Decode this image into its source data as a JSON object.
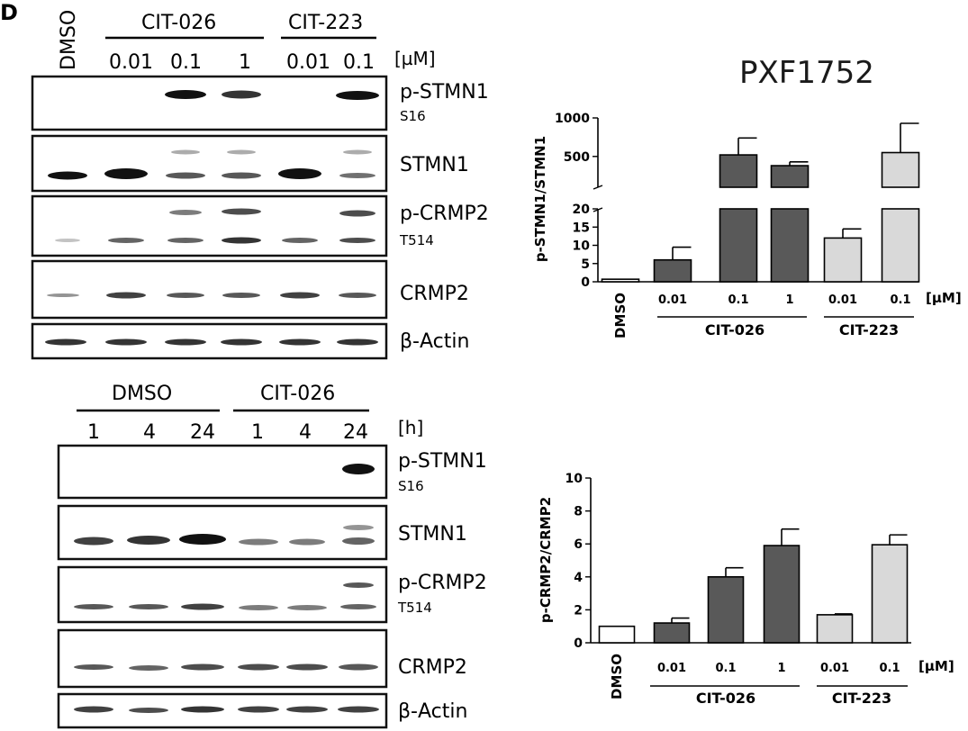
{
  "panel_letter": "D",
  "title": "PXF1752",
  "blot_top": {
    "dmso": "DMSO",
    "group1": "CIT-026",
    "group2": "CIT-223",
    "concs": [
      "0.01",
      "0.1",
      "1",
      "0.01",
      "0.1"
    ],
    "unit": "[µM]",
    "rows": [
      {
        "label": "p-STMN1",
        "sub": "S16"
      },
      {
        "label": "STMN1",
        "sub": ""
      },
      {
        "label": "p-CRMP2",
        "sub": "T514"
      },
      {
        "label": "CRMP2",
        "sub": ""
      },
      {
        "label": "β-Actin",
        "sub": ""
      }
    ]
  },
  "blot_bottom": {
    "group1": "DMSO",
    "group2": "CIT-026",
    "times": [
      "1",
      "4",
      "24",
      "1",
      "4",
      "24"
    ],
    "unit": "[h]",
    "rows": [
      {
        "label": "p-STMN1",
        "sub": "S16"
      },
      {
        "label": "STMN1",
        "sub": ""
      },
      {
        "label": "p-CRMP2",
        "sub": "T514"
      },
      {
        "label": "CRMP2",
        "sub": ""
      },
      {
        "label": "β-Actin",
        "sub": ""
      }
    ]
  },
  "colors": {
    "white": "#ffffff",
    "dark": "#595959",
    "light": "#d9d9d9",
    "band": "#111111"
  },
  "chart_data": [
    {
      "type": "bar",
      "ylabel": "p-STMN1/STMN1",
      "categories": [
        "DMSO",
        "0.01",
        "0.1",
        "1",
        "0.01",
        "0.1"
      ],
      "values": [
        0.7,
        6,
        520,
        380,
        12,
        550
      ],
      "errors": [
        0,
        3.5,
        220,
        50,
        2.5,
        380
      ],
      "bar_colors": [
        "white",
        "dark",
        "dark",
        "dark",
        "light",
        "light"
      ],
      "y_axis_break": true,
      "lower_ticks": [
        "0",
        "5",
        "10",
        "15",
        "20"
      ],
      "upper_ticks": [
        "500",
        "1000"
      ],
      "groups": [
        {
          "label": "CIT-026"
        },
        {
          "label": "CIT-223"
        }
      ],
      "unit": "[µM]"
    },
    {
      "type": "bar",
      "ylabel": "p-CRMP2/CRMP2",
      "categories": [
        "DMSO",
        "0.01",
        "0.1",
        "1",
        "0.01",
        "0.1"
      ],
      "values": [
        1.0,
        1.2,
        4.0,
        5.9,
        1.7,
        5.95
      ],
      "errors": [
        0,
        0.3,
        0.55,
        1.0,
        0.05,
        0.6
      ],
      "bar_colors": [
        "white",
        "dark",
        "dark",
        "dark",
        "light",
        "light"
      ],
      "ylim": [
        0,
        10
      ],
      "ticks": [
        "0",
        "2",
        "4",
        "6",
        "8",
        "10"
      ],
      "groups": [
        {
          "label": "CIT-026"
        },
        {
          "label": "CIT-223"
        }
      ],
      "unit": "[µM]"
    }
  ]
}
